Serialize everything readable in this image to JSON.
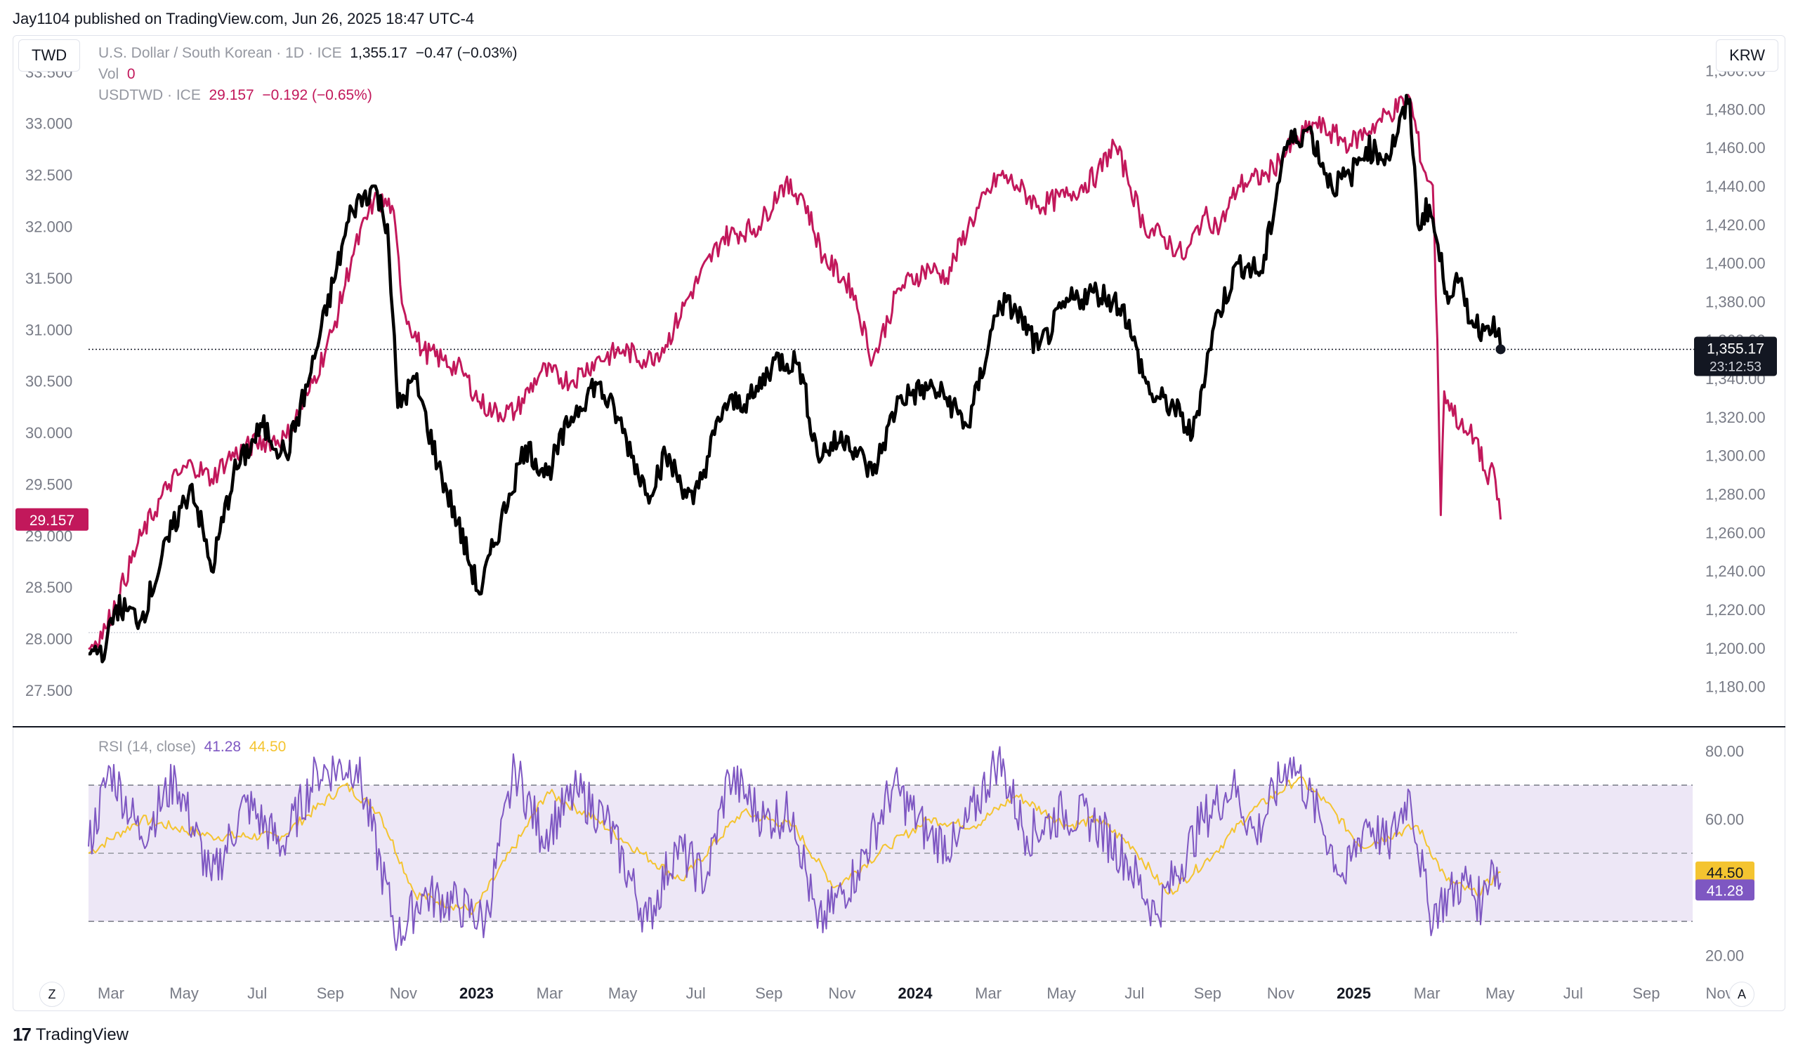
{
  "header": {
    "publisher_line": "Jay1104 published on TradingView.com, Jun 26, 2025 18:47 UTC-4"
  },
  "toolbar": {
    "left_symbol": "TWD",
    "right_symbol": "KRW"
  },
  "legend": {
    "main_name": "U.S. Dollar / South Korean · 1D · ICE",
    "main_values": "1,355.17  −0.47 (−0.03%)",
    "vol_label": "Vol",
    "vol_value": "0",
    "overlay_name": "USDTWD · ICE",
    "overlay_values": "29.157  −0.192 (−0.65%)"
  },
  "rsi_legend": {
    "label": "RSI (14, close)",
    "rsi_value": "41.28",
    "ma_value": "44.50"
  },
  "badges": {
    "krw_price": "1,355.17",
    "krw_countdown": "23:12:53",
    "twd_price": "29.157",
    "rsi_ma": "44.50",
    "rsi": "41.28"
  },
  "bottom_bar": {
    "left_icon_letter": "Z",
    "right_icon_letter": "A"
  },
  "footer": {
    "brand": "TradingView",
    "logo_mark": "17"
  },
  "colors": {
    "krw_line": "#000000",
    "twd_line": "#c2185b",
    "rsi_line": "#7e57c2",
    "rsi_ma_line": "#f4c430",
    "rsi_band": "#ede7f6"
  },
  "chart_data": {
    "type": "line",
    "x_ticks": [
      "Mar",
      "May",
      "Jul",
      "Sep",
      "Nov",
      "2023",
      "Mar",
      "May",
      "Jul",
      "Sep",
      "Nov",
      "2024",
      "Mar",
      "May",
      "Jul",
      "Sep",
      "Nov",
      "2025",
      "Mar",
      "May",
      "Jul",
      "Sep",
      "Nov"
    ],
    "x_tick_bold": [
      false,
      false,
      false,
      false,
      false,
      true,
      false,
      false,
      false,
      false,
      false,
      true,
      false,
      false,
      false,
      false,
      false,
      true,
      false,
      false,
      false,
      false,
      false
    ],
    "x_start": "2022-02-14",
    "x_end_axis": "2025-12-10",
    "left_axis": {
      "ticks": [
        "33.500",
        "33.000",
        "32.500",
        "32.000",
        "31.500",
        "31.000",
        "30.500",
        "30.000",
        "29.500",
        "29.000",
        "28.500",
        "28.000",
        "27.500"
      ],
      "range": [
        27.35,
        33.55
      ]
    },
    "right_axis": {
      "ticks": [
        "1,500.00",
        "1,480.00",
        "1,460.00",
        "1,440.00",
        "1,420.00",
        "1,400.00",
        "1,380.00",
        "1,360.00",
        "1,340.00",
        "1,320.00",
        "1,300.00",
        "1,280.00",
        "1,260.00",
        "1,240.00",
        "1,220.00",
        "1,200.00",
        "1,180.00"
      ],
      "range": [
        1170,
        1502
      ]
    },
    "rsi_axis": {
      "ticks": [
        "80.00",
        "60.00",
        "20.00"
      ],
      "range": [
        16,
        82
      ],
      "bands": [
        30,
        50,
        70
      ]
    },
    "series": [
      {
        "name": "U.S. Dollar / South Korean",
        "axis": "right",
        "keypoints": [
          [
            "2022-02-14",
            1197
          ],
          [
            "2022-03-01",
            1200
          ],
          [
            "2022-03-10",
            1222
          ],
          [
            "2022-04-01",
            1215
          ],
          [
            "2022-04-28",
            1262
          ],
          [
            "2022-05-15",
            1285
          ],
          [
            "2022-06-01",
            1240
          ],
          [
            "2022-06-20",
            1290
          ],
          [
            "2022-07-15",
            1315
          ],
          [
            "2022-08-05",
            1300
          ],
          [
            "2022-08-25",
            1340
          ],
          [
            "2022-09-15",
            1390
          ],
          [
            "2022-10-01",
            1428
          ],
          [
            "2022-10-20",
            1440
          ],
          [
            "2022-11-01",
            1420
          ],
          [
            "2022-11-10",
            1325
          ],
          [
            "2022-11-25",
            1340
          ],
          [
            "2022-12-15",
            1295
          ],
          [
            "2023-01-01",
            1265
          ],
          [
            "2023-01-20",
            1228
          ],
          [
            "2023-02-15",
            1280
          ],
          [
            "2023-03-01",
            1305
          ],
          [
            "2023-03-20",
            1290
          ],
          [
            "2023-04-10",
            1320
          ],
          [
            "2023-05-01",
            1338
          ],
          [
            "2023-05-20",
            1320
          ],
          [
            "2023-06-15",
            1280
          ],
          [
            "2023-07-01",
            1300
          ],
          [
            "2023-07-25",
            1275
          ],
          [
            "2023-08-20",
            1325
          ],
          [
            "2023-09-15",
            1330
          ],
          [
            "2023-10-04",
            1350
          ],
          [
            "2023-10-25",
            1348
          ],
          [
            "2023-11-10",
            1300
          ],
          [
            "2023-12-05",
            1310
          ],
          [
            "2023-12-28",
            1290
          ],
          [
            "2024-01-20",
            1330
          ],
          [
            "2024-02-15",
            1335
          ],
          [
            "2024-03-01",
            1330
          ],
          [
            "2024-03-20",
            1315
          ],
          [
            "2024-04-16",
            1380
          ],
          [
            "2024-05-01",
            1375
          ],
          [
            "2024-05-20",
            1355
          ],
          [
            "2024-06-15",
            1380
          ],
          [
            "2024-07-10",
            1385
          ],
          [
            "2024-08-01",
            1378
          ],
          [
            "2024-08-10",
            1360
          ],
          [
            "2024-08-25",
            1332
          ],
          [
            "2024-09-15",
            1325
          ],
          [
            "2024-10-01",
            1310
          ],
          [
            "2024-10-20",
            1368
          ],
          [
            "2024-11-10",
            1400
          ],
          [
            "2024-12-01",
            1395
          ],
          [
            "2024-12-20",
            1460
          ],
          [
            "2025-01-10",
            1470
          ],
          [
            "2025-01-30",
            1440
          ],
          [
            "2025-02-15",
            1445
          ],
          [
            "2025-03-01",
            1460
          ],
          [
            "2025-03-20",
            1455
          ],
          [
            "2025-04-08",
            1485
          ],
          [
            "2025-04-15",
            1420
          ],
          [
            "2025-04-25",
            1430
          ],
          [
            "2025-05-10",
            1385
          ],
          [
            "2025-05-20",
            1390
          ],
          [
            "2025-06-01",
            1370
          ],
          [
            "2025-06-12",
            1365
          ],
          [
            "2025-06-20",
            1372
          ],
          [
            "2025-06-26",
            1355.17
          ]
        ]
      },
      {
        "name": "USDTWD",
        "axis": "left",
        "keypoints": [
          [
            "2022-02-14",
            27.9
          ],
          [
            "2022-03-01",
            28.1
          ],
          [
            "2022-04-01",
            29.0
          ],
          [
            "2022-04-25",
            29.5
          ],
          [
            "2022-05-15",
            29.7
          ],
          [
            "2022-06-01",
            29.55
          ],
          [
            "2022-06-15",
            29.75
          ],
          [
            "2022-07-10",
            29.9
          ],
          [
            "2022-08-05",
            29.95
          ],
          [
            "2022-08-25",
            30.4
          ],
          [
            "2022-09-15",
            31.0
          ],
          [
            "2022-10-01",
            31.7
          ],
          [
            "2022-10-20",
            32.25
          ],
          [
            "2022-11-05",
            32.2
          ],
          [
            "2022-11-15",
            31.2
          ],
          [
            "2022-12-01",
            30.8
          ],
          [
            "2022-12-20",
            30.7
          ],
          [
            "2023-01-05",
            30.6
          ],
          [
            "2023-01-20",
            30.3
          ],
          [
            "2023-02-01",
            30.2
          ],
          [
            "2023-02-20",
            30.2
          ],
          [
            "2023-03-15",
            30.6
          ],
          [
            "2023-04-10",
            30.5
          ],
          [
            "2023-05-01",
            30.7
          ],
          [
            "2023-05-25",
            30.8
          ],
          [
            "2023-06-15",
            30.7
          ],
          [
            "2023-07-01",
            30.85
          ],
          [
            "2023-07-20",
            31.3
          ],
          [
            "2023-08-20",
            31.9
          ],
          [
            "2023-09-20",
            32.0
          ],
          [
            "2023-10-10",
            32.4
          ],
          [
            "2023-10-28",
            32.3
          ],
          [
            "2023-11-15",
            31.7
          ],
          [
            "2023-12-10",
            31.4
          ],
          [
            "2023-12-28",
            30.7
          ],
          [
            "2024-01-20",
            31.4
          ],
          [
            "2024-02-15",
            31.6
          ],
          [
            "2024-03-01",
            31.5
          ],
          [
            "2024-03-20",
            32.0
          ],
          [
            "2024-04-16",
            32.5
          ],
          [
            "2024-05-01",
            32.4
          ],
          [
            "2024-05-20",
            32.2
          ],
          [
            "2024-06-15",
            32.3
          ],
          [
            "2024-07-10",
            32.5
          ],
          [
            "2024-07-25",
            32.8
          ],
          [
            "2024-08-05",
            32.5
          ],
          [
            "2024-08-20",
            32.0
          ],
          [
            "2024-09-05",
            31.9
          ],
          [
            "2024-09-25",
            31.7
          ],
          [
            "2024-10-10",
            32.1
          ],
          [
            "2024-10-25",
            32.0
          ],
          [
            "2024-11-10",
            32.4
          ],
          [
            "2024-12-05",
            32.5
          ],
          [
            "2024-12-28",
            32.8
          ],
          [
            "2025-01-15",
            33.0
          ],
          [
            "2025-02-15",
            32.8
          ],
          [
            "2025-03-10",
            33.0
          ],
          [
            "2025-04-08",
            33.25
          ],
          [
            "2025-04-20",
            32.55
          ],
          [
            "2025-04-28",
            32.4
          ],
          [
            "2025-05-02",
            30.9
          ],
          [
            "2025-05-05",
            29.2
          ],
          [
            "2025-05-08",
            30.4
          ],
          [
            "2025-05-25",
            30.0
          ],
          [
            "2025-06-05",
            29.95
          ],
          [
            "2025-06-15",
            29.5
          ],
          [
            "2025-06-20",
            29.65
          ],
          [
            "2025-06-26",
            29.157
          ]
        ]
      },
      {
        "name": "RSI (14, close)",
        "axis": "rsi",
        "keypoints": [
          [
            "2022-02-14",
            52
          ],
          [
            "2022-03-05",
            75
          ],
          [
            "2022-04-01",
            55
          ],
          [
            "2022-05-01",
            72
          ],
          [
            "2022-06-01",
            42
          ],
          [
            "2022-07-01",
            65
          ],
          [
            "2022-08-01",
            52
          ],
          [
            "2022-09-01",
            74
          ],
          [
            "2022-10-05",
            76
          ],
          [
            "2022-11-10",
            25
          ],
          [
            "2022-12-01",
            38
          ],
          [
            "2023-01-01",
            35
          ],
          [
            "2023-01-25",
            30
          ],
          [
            "2023-02-20",
            75
          ],
          [
            "2023-03-15",
            55
          ],
          [
            "2023-04-15",
            68
          ],
          [
            "2023-05-10",
            60
          ],
          [
            "2023-06-15",
            30
          ],
          [
            "2023-07-10",
            52
          ],
          [
            "2023-08-05",
            42
          ],
          [
            "2023-08-25",
            73
          ],
          [
            "2023-09-25",
            60
          ],
          [
            "2023-10-20",
            62
          ],
          [
            "2023-11-10",
            28
          ],
          [
            "2023-12-15",
            45
          ],
          [
            "2024-01-15",
            70
          ],
          [
            "2024-02-15",
            55
          ],
          [
            "2024-03-10",
            52
          ],
          [
            "2024-04-15",
            78
          ],
          [
            "2024-05-10",
            55
          ],
          [
            "2024-06-10",
            62
          ],
          [
            "2024-07-05",
            60
          ],
          [
            "2024-08-05",
            48
          ],
          [
            "2024-08-30",
            32
          ],
          [
            "2024-10-10",
            60
          ],
          [
            "2024-11-05",
            70
          ],
          [
            "2024-11-25",
            55
          ],
          [
            "2024-12-25",
            78
          ],
          [
            "2025-01-20",
            60
          ],
          [
            "2025-02-10",
            42
          ],
          [
            "2025-03-01",
            60
          ],
          [
            "2025-03-20",
            52
          ],
          [
            "2025-04-08",
            68
          ],
          [
            "2025-04-25",
            32
          ],
          [
            "2025-05-25",
            42
          ],
          [
            "2025-06-10",
            35
          ],
          [
            "2025-06-18",
            48
          ],
          [
            "2025-06-26",
            41.28
          ]
        ]
      },
      {
        "name": "RSI MA",
        "axis": "rsi",
        "keypoints": [
          [
            "2022-02-14",
            50
          ],
          [
            "2022-04-01",
            60
          ],
          [
            "2022-06-01",
            55
          ],
          [
            "2022-08-01",
            55
          ],
          [
            "2022-09-25",
            70
          ],
          [
            "2022-10-25",
            62
          ],
          [
            "2022-11-25",
            38
          ],
          [
            "2023-01-15",
            33
          ],
          [
            "2023-02-25",
            55
          ],
          [
            "2023-03-20",
            68
          ],
          [
            "2023-05-01",
            60
          ],
          [
            "2023-06-10",
            50
          ],
          [
            "2023-07-15",
            42
          ],
          [
            "2023-09-05",
            62
          ],
          [
            "2023-10-20",
            58
          ],
          [
            "2023-11-25",
            40
          ],
          [
            "2024-01-10",
            52
          ],
          [
            "2024-02-15",
            60
          ],
          [
            "2024-03-25",
            58
          ],
          [
            "2024-05-01",
            67
          ],
          [
            "2024-06-15",
            58
          ],
          [
            "2024-07-10",
            60
          ],
          [
            "2024-08-10",
            52
          ],
          [
            "2024-09-10",
            38
          ],
          [
            "2024-10-20",
            50
          ],
          [
            "2024-11-20",
            62
          ],
          [
            "2025-01-01",
            72
          ],
          [
            "2025-01-25",
            65
          ],
          [
            "2025-02-25",
            52
          ],
          [
            "2025-03-20",
            55
          ],
          [
            "2025-04-15",
            58
          ],
          [
            "2025-05-10",
            42
          ],
          [
            "2025-06-05",
            38
          ],
          [
            "2025-06-26",
            44.5
          ]
        ]
      }
    ],
    "last_values": {
      "krw": 1355.17,
      "twd": 29.157,
      "rsi": 41.28,
      "rsi_ma": 44.5
    }
  }
}
